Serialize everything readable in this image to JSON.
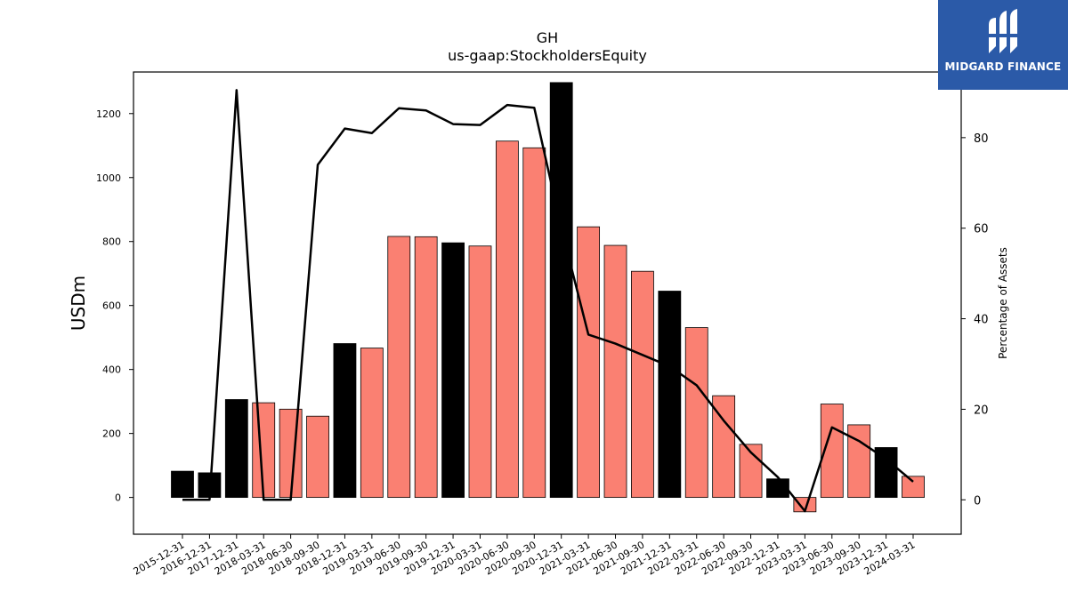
{
  "logo": {
    "text": "MIDGARD FINANCE",
    "icon": "midgard-logo-icon",
    "bg_color": "#2b5aa8"
  },
  "chart_data": {
    "type": "bar",
    "title": "GH",
    "subtitle": "us-gaap:StockholdersEquity",
    "ylabel": "USDm",
    "y2label": "Percentage of Assets",
    "ylim": [
      -115,
      1330
    ],
    "y2lim": [
      -7.6,
      94.5
    ],
    "yticks": [
      0,
      200,
      400,
      600,
      800,
      1000,
      1200
    ],
    "y2ticks": [
      0,
      20,
      40,
      60,
      80
    ],
    "bar_colors": {
      "annual": "#000000",
      "quarterly": "#fa8072"
    },
    "categories": [
      "2015-12-31",
      "2016-12-31",
      "2017-12-31",
      "2018-03-31",
      "2018-06-30",
      "2018-09-30",
      "2018-12-31",
      "2019-03-31",
      "2019-06-30",
      "2019-09-30",
      "2019-12-31",
      "2020-03-31",
      "2020-06-30",
      "2020-09-30",
      "2020-12-31",
      "2021-03-31",
      "2021-06-30",
      "2021-09-30",
      "2021-12-31",
      "2022-03-31",
      "2022-06-30",
      "2022-09-30",
      "2022-12-31",
      "2023-03-31",
      "2023-06-30",
      "2023-09-30",
      "2023-12-31",
      "2024-03-31"
    ],
    "series": [
      {
        "type": "bar",
        "values": [
          82,
          77,
          306,
          296,
          276,
          254,
          481,
          467,
          816,
          815,
          796,
          786,
          1114,
          1093,
          1297,
          846,
          788,
          707,
          645,
          531,
          318,
          166,
          58,
          -45,
          292,
          227,
          156,
          66
        ],
        "annual": [
          true,
          true,
          true,
          false,
          false,
          false,
          true,
          false,
          false,
          false,
          true,
          false,
          false,
          false,
          true,
          false,
          false,
          false,
          true,
          false,
          false,
          false,
          true,
          false,
          false,
          false,
          true,
          false
        ]
      },
      {
        "type": "line",
        "axis": "right",
        "color": "#000000",
        "values": [
          0,
          0,
          90.5,
          0,
          0,
          74,
          82,
          81,
          86.5,
          86,
          83,
          82.8,
          87.2,
          86.6,
          60,
          36.5,
          34.5,
          32,
          29.5,
          25.3,
          17.5,
          10.5,
          5,
          -2.5,
          16,
          13,
          9,
          4
        ]
      }
    ]
  }
}
